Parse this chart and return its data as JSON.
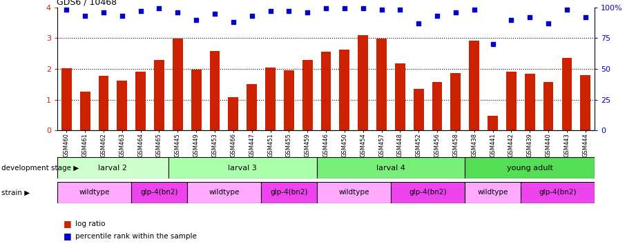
{
  "title": "GDS6 / 10468",
  "samples": [
    "GSM460",
    "GSM461",
    "GSM462",
    "GSM463",
    "GSM464",
    "GSM465",
    "GSM445",
    "GSM449",
    "GSM453",
    "GSM466",
    "GSM447",
    "GSM451",
    "GSM455",
    "GSM459",
    "GSM446",
    "GSM450",
    "GSM454",
    "GSM457",
    "GSM448",
    "GSM452",
    "GSM456",
    "GSM458",
    "GSM438",
    "GSM441",
    "GSM442",
    "GSM439",
    "GSM440",
    "GSM443",
    "GSM444"
  ],
  "log_ratio": [
    2.02,
    1.25,
    1.78,
    1.62,
    1.9,
    2.28,
    2.98,
    1.98,
    2.58,
    1.07,
    1.5,
    2.05,
    1.95,
    2.3,
    2.55,
    2.62,
    3.1,
    2.98,
    2.18,
    1.35,
    1.58,
    1.87,
    2.92,
    0.47,
    1.9,
    1.85,
    1.58,
    2.35,
    1.8
  ],
  "percentile": [
    98,
    93,
    96,
    93,
    97,
    99,
    96,
    90,
    95,
    88,
    93,
    97,
    97,
    96,
    99,
    99,
    99,
    98,
    98,
    87,
    93,
    96,
    98,
    70,
    90,
    92,
    87,
    98,
    92
  ],
  "dev_stages": [
    {
      "label": "larval 2",
      "start": 0,
      "end": 5,
      "color": "#ccffcc"
    },
    {
      "label": "larval 3",
      "start": 6,
      "end": 13,
      "color": "#aaffaa"
    },
    {
      "label": "larval 4",
      "start": 14,
      "end": 21,
      "color": "#77ee77"
    },
    {
      "label": "young adult",
      "start": 22,
      "end": 28,
      "color": "#55dd55"
    }
  ],
  "strains": [
    {
      "label": "wildtype",
      "start": 0,
      "end": 3,
      "color": "#ffaaff"
    },
    {
      "label": "glp-4(bn2)",
      "start": 4,
      "end": 6,
      "color": "#ee44ee"
    },
    {
      "label": "wildtype",
      "start": 7,
      "end": 10,
      "color": "#ffaaff"
    },
    {
      "label": "glp-4(bn2)",
      "start": 11,
      "end": 13,
      "color": "#ee44ee"
    },
    {
      "label": "wildtype",
      "start": 14,
      "end": 17,
      "color": "#ffaaff"
    },
    {
      "label": "glp-4(bn2)",
      "start": 18,
      "end": 21,
      "color": "#ee44ee"
    },
    {
      "label": "wildtype",
      "start": 22,
      "end": 24,
      "color": "#ffaaff"
    },
    {
      "label": "glp-4(bn2)",
      "start": 25,
      "end": 28,
      "color": "#ee44ee"
    }
  ],
  "bar_color": "#cc2200",
  "dot_color": "#0000cc",
  "ylim_left": [
    0,
    4
  ],
  "ylim_right": [
    0,
    100
  ],
  "yticks_left": [
    0,
    1,
    2,
    3,
    4
  ],
  "yticks_right": [
    0,
    25,
    50,
    75,
    100
  ],
  "grid_lines": [
    1,
    2,
    3
  ]
}
